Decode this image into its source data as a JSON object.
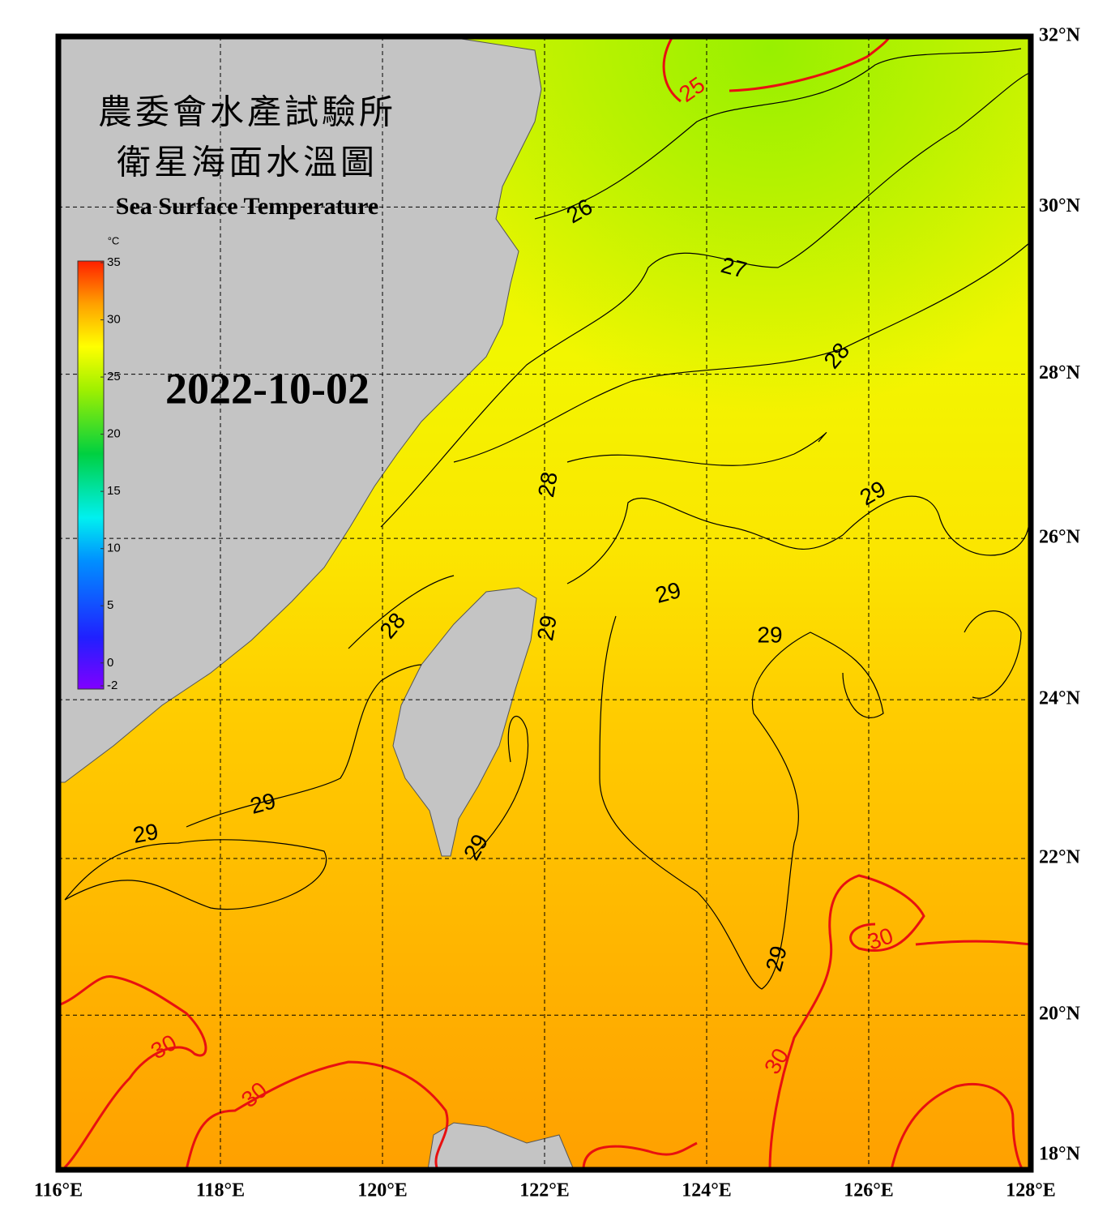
{
  "map": {
    "title_lines": [
      "農委會水產試驗所",
      "衛星海面水溫圖"
    ],
    "subtitle": "Sea Surface Temperature",
    "date": "2022-10-02",
    "colorbar": {
      "unit": "°C",
      "lim": [
        -2,
        35
      ],
      "ticks": [
        35,
        30,
        25,
        20,
        15,
        10,
        5,
        0,
        -2
      ]
    },
    "lon_range": [
      116,
      128
    ],
    "lat_range": [
      18,
      32
    ],
    "lon_ticks": [
      {
        "value": 116,
        "label": "116°E"
      },
      {
        "value": 118,
        "label": "118°E"
      },
      {
        "value": 120,
        "label": "120°E"
      },
      {
        "value": 122,
        "label": "122°E"
      },
      {
        "value": 124,
        "label": "124°E"
      },
      {
        "value": 126,
        "label": "126°E"
      },
      {
        "value": 128,
        "label": "128°E"
      }
    ],
    "lat_ticks": [
      {
        "value": 18,
        "label": "18°N"
      },
      {
        "value": 20,
        "label": "20°N"
      },
      {
        "value": 22,
        "label": "22°N"
      },
      {
        "value": 24,
        "label": "24°N"
      },
      {
        "value": 26,
        "label": "26°N"
      },
      {
        "value": 28,
        "label": "28°N"
      },
      {
        "value": 30,
        "label": "30°N"
      },
      {
        "value": 32,
        "label": "32°N"
      }
    ],
    "contour_labels": [
      "25",
      "26",
      "27",
      "28",
      "28",
      "28",
      "29",
      "29",
      "29",
      "29",
      "29",
      "29",
      "29",
      "29",
      "30",
      "30",
      "30",
      "30"
    ]
  }
}
